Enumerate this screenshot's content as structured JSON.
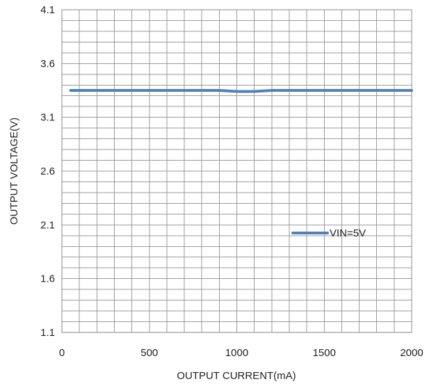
{
  "chart_data": {
    "type": "line",
    "title": "",
    "xlabel": "OUTPUT CURRENT(mA)",
    "ylabel": "OUTPUT VOLTAGE(V)",
    "xlim": [
      0,
      2000
    ],
    "ylim": [
      1.1,
      4.1
    ],
    "xticks": [
      0,
      500,
      1000,
      1500,
      2000
    ],
    "xtick_labels": [
      "0",
      "500",
      "1000",
      "1500",
      "2000"
    ],
    "yticks": [
      1.1,
      1.6,
      2.1,
      2.6,
      3.1,
      3.6,
      4.1
    ],
    "ytick_labels": [
      "1.1",
      "1.6",
      "2.1",
      "2.6",
      "3.1",
      "3.6",
      "4.1"
    ],
    "grid": true,
    "minor_grid": {
      "x_step": 100,
      "y_step": 0.1
    },
    "legend_position": "center-right",
    "series": [
      {
        "name": "VIN=5V",
        "color": "#4f81bd",
        "x": [
          50,
          200,
          400,
          600,
          800,
          900,
          1000,
          1100,
          1200,
          1400,
          1600,
          1800,
          2000
        ],
        "y": [
          3.35,
          3.35,
          3.35,
          3.35,
          3.35,
          3.35,
          3.34,
          3.34,
          3.35,
          3.35,
          3.35,
          3.35,
          3.35
        ]
      }
    ]
  }
}
